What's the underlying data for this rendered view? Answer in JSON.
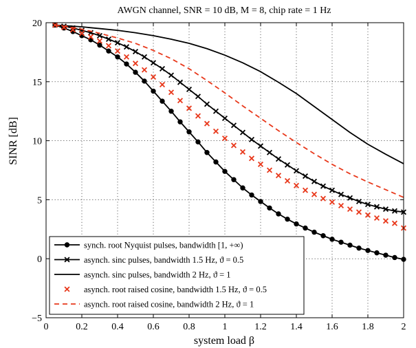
{
  "chart_data": {
    "type": "line",
    "title": "AWGN channel, SNR = 10 dB, M = 8, chip rate = 1 Hz",
    "xlabel": "system load  β",
    "ylabel": "SINR [dB]",
    "xlim": [
      0,
      2
    ],
    "ylim": [
      -5,
      20
    ],
    "xticks": [
      0,
      0.2,
      0.4,
      0.6,
      0.8,
      1,
      1.2,
      1.4,
      1.6,
      1.8,
      2
    ],
    "xtick_labels": [
      "0",
      "0.2",
      "0.4",
      "0.6",
      "0.8",
      "1",
      "1.2",
      "1.4",
      "1.6",
      "1.8",
      "2"
    ],
    "yticks": [
      -5,
      0,
      5,
      10,
      15,
      20
    ],
    "ytick_labels": [
      "−5",
      "0",
      "5",
      "10",
      "15",
      "20"
    ],
    "grid": true,
    "legend_position": "bottom-left",
    "series": [
      {
        "name": "synch. root Nyquist pulses, bandwidth [1, +∞)",
        "color": "#000000",
        "style": "solid",
        "marker": "dot",
        "x": [
          0.05,
          0.1,
          0.15,
          0.2,
          0.25,
          0.3,
          0.35,
          0.4,
          0.45,
          0.5,
          0.55,
          0.6,
          0.65,
          0.7,
          0.75,
          0.8,
          0.85,
          0.9,
          0.95,
          1.0,
          1.05,
          1.1,
          1.15,
          1.2,
          1.25,
          1.3,
          1.35,
          1.4,
          1.45,
          1.5,
          1.55,
          1.6,
          1.65,
          1.7,
          1.75,
          1.8,
          1.85,
          1.9,
          1.95,
          2.0
        ],
        "y": [
          19.8,
          19.55,
          19.25,
          18.9,
          18.55,
          18.1,
          17.6,
          17.1,
          16.5,
          15.8,
          15.05,
          14.2,
          13.35,
          12.5,
          11.6,
          10.75,
          9.9,
          9.0,
          8.2,
          7.4,
          6.7,
          6.0,
          5.4,
          4.85,
          4.3,
          3.8,
          3.35,
          2.95,
          2.6,
          2.25,
          1.95,
          1.65,
          1.4,
          1.15,
          0.9,
          0.7,
          0.5,
          0.3,
          0.1,
          -0.05
        ]
      },
      {
        "name": "asynch. sinc pulses, bandwidth 1.5 Hz,  ϑ = 0.5",
        "color": "#000000",
        "style": "solid",
        "marker": "x",
        "x": [
          0.05,
          0.1,
          0.15,
          0.2,
          0.25,
          0.3,
          0.35,
          0.4,
          0.45,
          0.5,
          0.55,
          0.6,
          0.65,
          0.7,
          0.75,
          0.8,
          0.85,
          0.9,
          0.95,
          1.0,
          1.05,
          1.1,
          1.15,
          1.2,
          1.25,
          1.3,
          1.35,
          1.4,
          1.45,
          1.5,
          1.55,
          1.6,
          1.65,
          1.7,
          1.75,
          1.8,
          1.85,
          1.9,
          1.95,
          2.0
        ],
        "y": [
          19.8,
          19.7,
          19.55,
          19.35,
          19.15,
          18.9,
          18.6,
          18.3,
          17.95,
          17.55,
          17.1,
          16.6,
          16.1,
          15.55,
          14.95,
          14.35,
          13.75,
          13.1,
          12.5,
          11.9,
          11.3,
          10.7,
          10.1,
          9.55,
          9.0,
          8.45,
          7.95,
          7.45,
          7.0,
          6.55,
          6.15,
          5.8,
          5.45,
          5.15,
          4.85,
          4.6,
          4.4,
          4.2,
          4.05,
          3.95
        ]
      },
      {
        "name": "asynch. sinc pulses, bandwidth 2 Hz,  ϑ = 1",
        "color": "#000000",
        "style": "solid",
        "marker": "none",
        "x": [
          0.05,
          0.1,
          0.2,
          0.3,
          0.4,
          0.5,
          0.6,
          0.7,
          0.8,
          0.9,
          1.0,
          1.1,
          1.2,
          1.3,
          1.4,
          1.5,
          1.6,
          1.7,
          1.8,
          1.9,
          2.0
        ],
        "y": [
          19.8,
          19.75,
          19.65,
          19.5,
          19.35,
          19.15,
          18.9,
          18.6,
          18.25,
          17.8,
          17.25,
          16.6,
          15.85,
          14.95,
          14.0,
          12.9,
          11.8,
          10.7,
          9.7,
          8.85,
          8.05
        ]
      },
      {
        "name": "asynch. root raised cosine, bandwidth 1.5 Hz,  ϑ = 0.5",
        "color": "#e8381b",
        "style": "none",
        "marker": "x",
        "x": [
          0.05,
          0.1,
          0.15,
          0.2,
          0.25,
          0.3,
          0.35,
          0.4,
          0.45,
          0.5,
          0.55,
          0.6,
          0.65,
          0.7,
          0.75,
          0.8,
          0.85,
          0.9,
          0.95,
          1.0,
          1.05,
          1.1,
          1.15,
          1.2,
          1.25,
          1.3,
          1.35,
          1.4,
          1.45,
          1.5,
          1.55,
          1.6,
          1.65,
          1.7,
          1.75,
          1.8,
          1.85,
          1.9,
          1.95,
          2.0
        ],
        "y": [
          19.8,
          19.6,
          19.4,
          19.1,
          18.8,
          18.45,
          18.05,
          17.6,
          17.1,
          16.55,
          16.0,
          15.4,
          14.75,
          14.1,
          13.4,
          12.75,
          12.1,
          11.45,
          10.8,
          10.2,
          9.6,
          9.05,
          8.5,
          8.0,
          7.5,
          7.05,
          6.6,
          6.2,
          5.8,
          5.45,
          5.1,
          4.8,
          4.5,
          4.2,
          3.95,
          3.7,
          3.45,
          3.2,
          3.0,
          2.6
        ]
      },
      {
        "name": "asynch. root raised cosine, bandwidth 2 Hz,  ϑ = 1",
        "color": "#e8381b",
        "style": "dashed",
        "marker": "none",
        "x": [
          0.05,
          0.1,
          0.2,
          0.3,
          0.4,
          0.5,
          0.6,
          0.7,
          0.8,
          0.9,
          1.0,
          1.1,
          1.2,
          1.3,
          1.4,
          1.5,
          1.6,
          1.7,
          1.8,
          1.9,
          2.0
        ],
        "y": [
          19.8,
          19.7,
          19.45,
          19.1,
          18.7,
          18.25,
          17.65,
          16.95,
          16.1,
          15.1,
          14.05,
          12.95,
          11.9,
          10.85,
          9.85,
          8.9,
          8.0,
          7.2,
          6.5,
          5.85,
          5.2
        ]
      }
    ]
  }
}
